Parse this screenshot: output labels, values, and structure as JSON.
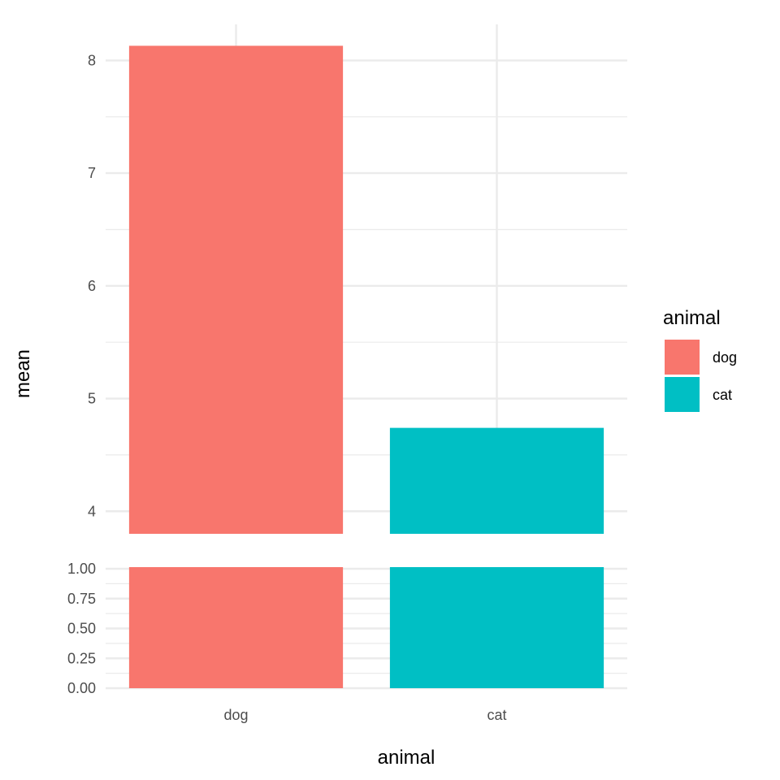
{
  "chart_data": {
    "type": "bar",
    "broken_axis": true,
    "categories": [
      "dog",
      "cat"
    ],
    "values": [
      8.13,
      4.74
    ],
    "colors": {
      "dog": "#F8766D",
      "cat": "#00BFC4"
    },
    "xlabel": "animal",
    "ylabel": "mean",
    "upper_panel": {
      "ylim": [
        3.8,
        8.32
      ],
      "major_ticks": [
        4,
        5,
        6,
        7,
        8
      ],
      "major_tick_labels": [
        "4",
        "5",
        "6",
        "7",
        "8"
      ],
      "minor_ticks": [
        4.5,
        5.5,
        6.5,
        7.5
      ],
      "bar_base": 3.8
    },
    "lower_panel": {
      "ylim": [
        0,
        1.0
      ],
      "major_ticks": [
        0,
        0.25,
        0.5,
        0.75,
        1.0
      ],
      "major_tick_labels": [
        "0.00",
        "0.25",
        "0.50",
        "0.75",
        "1.00"
      ],
      "minor_ticks": [
        0.125,
        0.375,
        0.625,
        0.875
      ],
      "bar_top": 1.0
    },
    "legend": {
      "title": "animal",
      "position": "right",
      "entries": [
        {
          "label": "dog",
          "color": "#F8766D"
        },
        {
          "label": "cat",
          "color": "#00BFC4"
        }
      ]
    },
    "grid": true
  }
}
